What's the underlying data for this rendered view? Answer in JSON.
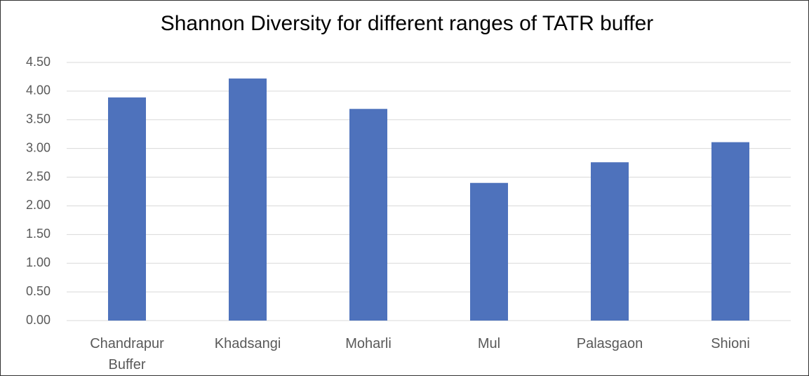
{
  "chart_data": {
    "type": "bar",
    "title": "Shannon Diversity for different ranges of TATR buffer",
    "categories": [
      "Chandrapur Buffer",
      "Khadsangi",
      "Moharli",
      "Mul",
      "Palasgaon",
      "Shioni"
    ],
    "values": [
      3.89,
      4.22,
      3.69,
      2.4,
      2.76,
      3.11
    ],
    "color": "#4e72bc",
    "ylim": [
      0,
      4.5
    ],
    "yticks": [
      {
        "value": 0,
        "label": "0.00"
      },
      {
        "value": 0.5,
        "label": "0.50"
      },
      {
        "value": 1,
        "label": "1.00"
      },
      {
        "value": 1.5,
        "label": "1.50"
      },
      {
        "value": 2,
        "label": "2.00"
      },
      {
        "value": 2.5,
        "label": "2.50"
      },
      {
        "value": 3,
        "label": "3.00"
      },
      {
        "value": 3.5,
        "label": "3.50"
      },
      {
        "value": 4,
        "label": "4.00"
      },
      {
        "value": 4.5,
        "label": "4.50"
      }
    ],
    "grid": true
  }
}
